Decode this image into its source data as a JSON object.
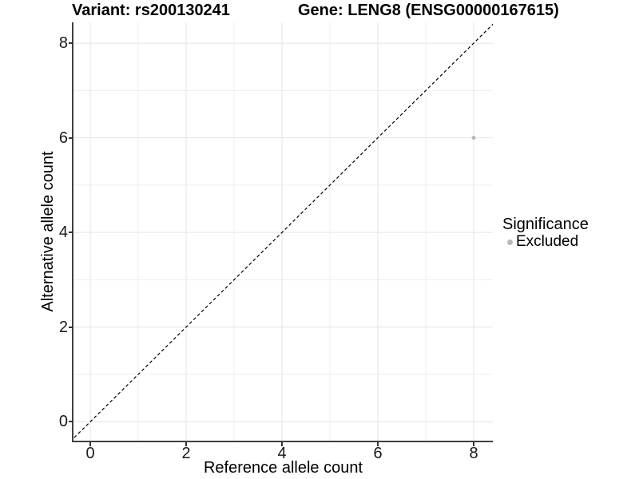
{
  "title": {
    "variant_label": "Variant: rs200130241",
    "gene_label": "Gene: LENG8 (ENSG00000167615)"
  },
  "chart_data": {
    "type": "scatter",
    "title": "Variant: rs200130241  Gene: LENG8 (ENSG00000167615)",
    "xlabel": "Reference allele count",
    "ylabel": "Alternative allele count",
    "xlim": [
      -0.35,
      8.4
    ],
    "ylim": [
      -0.4,
      8.44
    ],
    "x_ticks": [
      0,
      2,
      4,
      6,
      8
    ],
    "y_ticks": [
      0,
      2,
      4,
      6,
      8
    ],
    "grid_lines": [
      0,
      1,
      2,
      3,
      4,
      5,
      6,
      7,
      8
    ],
    "grid": "on",
    "series": [
      {
        "name": "Excluded",
        "color": "#b8b8b8",
        "points": [
          {
            "x": 8,
            "y": 6
          }
        ]
      }
    ],
    "reference_line": {
      "type": "identity",
      "slope": 1,
      "intercept": 0,
      "style": "dashed",
      "color": "#000000"
    },
    "legend": {
      "title": "Significance",
      "position": "right",
      "entries": [
        {
          "label": "Excluded",
          "color": "#b8b8b8"
        }
      ]
    }
  },
  "colors": {
    "background": "#ffffff",
    "axis_line": "#404040",
    "tick": "#333333",
    "grid_major": "#e4e4e4",
    "grid_minor": "#efefef",
    "point": "#b8b8b8",
    "text": "#000000"
  }
}
